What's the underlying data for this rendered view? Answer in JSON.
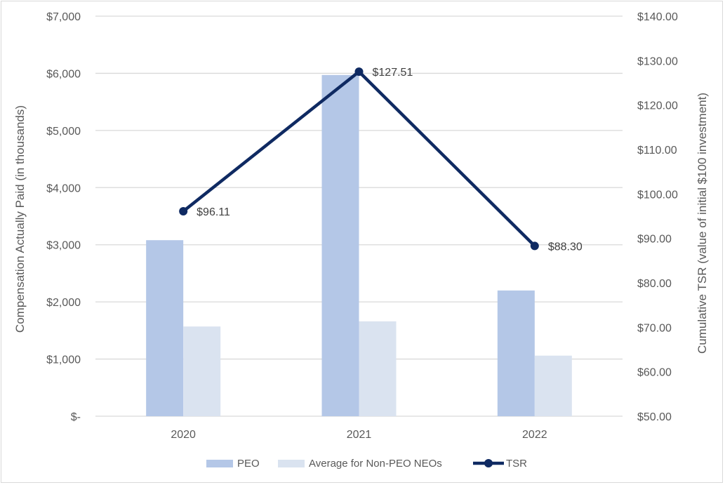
{
  "chart_data": {
    "type": "bar",
    "categories": [
      "2020",
      "2021",
      "2022"
    ],
    "series": [
      {
        "name": "PEO",
        "kind": "bar",
        "axis": "left",
        "color": "#b4c7e7",
        "values": [
          3080,
          5970,
          2200
        ]
      },
      {
        "name": "Average for Non-PEO NEOs",
        "kind": "bar",
        "axis": "left",
        "color": "#dae3f0",
        "values": [
          1570,
          1660,
          1060
        ]
      },
      {
        "name": "TSR",
        "kind": "line",
        "axis": "right",
        "color": "#0f2a62",
        "values": [
          96.11,
          127.51,
          88.3
        ],
        "labels": [
          "$96.11",
          "$127.51",
          "$88.30"
        ]
      }
    ],
    "ylabel": "Compensation Actually Paid (in thousands)",
    "y2label": "Cumulative TSR (value of initial $100 investment)",
    "ylim": [
      0,
      7000
    ],
    "y2lim": [
      50,
      140
    ],
    "yticks": [
      {
        "value": 0,
        "label": "$-"
      },
      {
        "value": 1000,
        "label": "$1,000"
      },
      {
        "value": 2000,
        "label": "$2,000"
      },
      {
        "value": 3000,
        "label": "$3,000"
      },
      {
        "value": 4000,
        "label": "$4,000"
      },
      {
        "value": 5000,
        "label": "$5,000"
      },
      {
        "value": 6000,
        "label": "$6,000"
      },
      {
        "value": 7000,
        "label": "$7,000"
      }
    ],
    "y2ticks": [
      {
        "value": 50,
        "label": "$50.00"
      },
      {
        "value": 60,
        "label": "$60.00"
      },
      {
        "value": 70,
        "label": "$70.00"
      },
      {
        "value": 80,
        "label": "$80.00"
      },
      {
        "value": 90,
        "label": "$90.00"
      },
      {
        "value": 100,
        "label": "$100.00"
      },
      {
        "value": 110,
        "label": "$110.00"
      },
      {
        "value": 120,
        "label": "$120.00"
      },
      {
        "value": 130,
        "label": "$130.00"
      },
      {
        "value": 140,
        "label": "$140.00"
      }
    ],
    "grid": true,
    "legend_position": "bottom"
  }
}
